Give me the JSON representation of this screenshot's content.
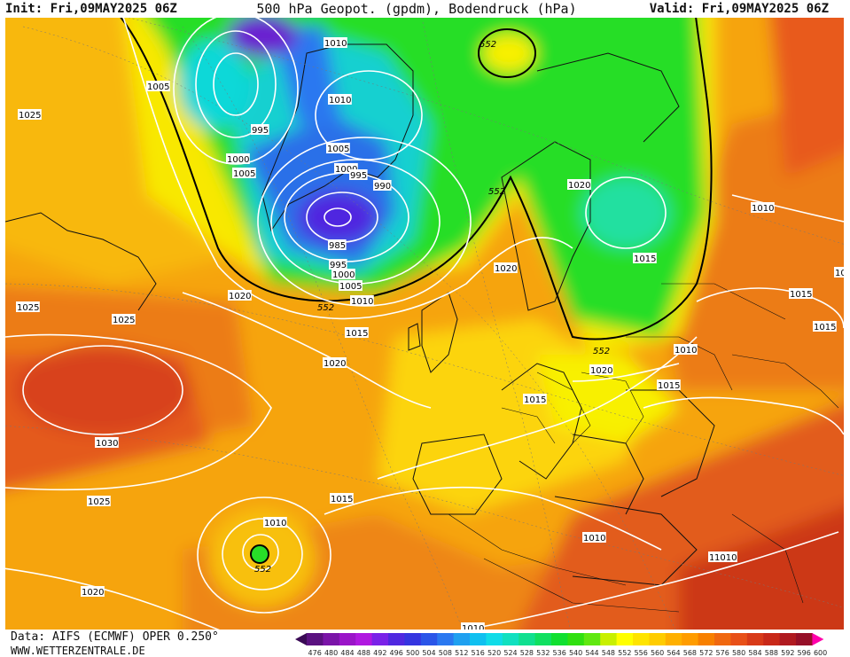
{
  "header": {
    "init": "Init: Fri,09MAY2025 06Z",
    "title": "500 hPa Geopot. (gpdm), Bodendruck (hPa)",
    "valid": "Valid: Fri,09MAY2025 06Z"
  },
  "footer": {
    "data_source": "Data: AIFS (ECMWF) OPER 0.250°",
    "website": "WWW.WETTERZENTRALE.DE"
  },
  "colorbar": {
    "ticks": [
      "476",
      "480",
      "484",
      "488",
      "492",
      "496",
      "500",
      "504",
      "508",
      "512",
      "516",
      "520",
      "524",
      "528",
      "532",
      "536",
      "540",
      "544",
      "548",
      "552",
      "556",
      "560",
      "564",
      "568",
      "572",
      "576",
      "580",
      "584",
      "588",
      "592",
      "596",
      "600"
    ],
    "colors": [
      "#3a0a55",
      "#5a1180",
      "#7a14a8",
      "#9a14c8",
      "#b018e0",
      "#7a22e8",
      "#5028e0",
      "#3535e0",
      "#2a55e8",
      "#2a78f0",
      "#1fa0f0",
      "#10c0f0",
      "#10dce8",
      "#10e0c0",
      "#10e090",
      "#10e060",
      "#10e030",
      "#30e010",
      "#60e810",
      "#c8f000",
      "#ffff00",
      "#ffe400",
      "#ffcc00",
      "#ffb000",
      "#ff9c00",
      "#f88000",
      "#f06810",
      "#e85018",
      "#d83a18",
      "#c82818",
      "#b01a20",
      "#961028",
      "#ff00aa"
    ]
  },
  "map": {
    "contour_labels": [
      {
        "text": "1010",
        "kind": "isobar"
      },
      {
        "text": "1005",
        "kind": "isobar"
      },
      {
        "text": "1025",
        "kind": "isobar"
      },
      {
        "text": "995",
        "kind": "isobar"
      },
      {
        "text": "1010",
        "kind": "isobar"
      },
      {
        "text": "1000",
        "kind": "isobar"
      },
      {
        "text": "1005",
        "kind": "isobar"
      },
      {
        "text": "1005",
        "kind": "isobar"
      },
      {
        "text": "1000",
        "kind": "isobar"
      },
      {
        "text": "995",
        "kind": "isobar"
      },
      {
        "text": "990",
        "kind": "isobar"
      },
      {
        "text": "985",
        "kind": "isobar"
      },
      {
        "text": "995",
        "kind": "isobar"
      },
      {
        "text": "1000",
        "kind": "isobar"
      },
      {
        "text": "1005",
        "kind": "isobar"
      },
      {
        "text": "1010",
        "kind": "isobar"
      },
      {
        "text": "1020",
        "kind": "isobar"
      },
      {
        "text": "1025",
        "kind": "isobar"
      },
      {
        "text": "1025",
        "kind": "isobar"
      },
      {
        "text": "1015",
        "kind": "isobar"
      },
      {
        "text": "1020",
        "kind": "isobar"
      },
      {
        "text": "1020",
        "kind": "isobar"
      },
      {
        "text": "1020",
        "kind": "isobar"
      },
      {
        "text": "1015",
        "kind": "isobar"
      },
      {
        "text": "1010",
        "kind": "isobar"
      },
      {
        "text": "1015",
        "kind": "isobar"
      },
      {
        "text": "1015",
        "kind": "isobar"
      },
      {
        "text": "1010",
        "kind": "isobar"
      },
      {
        "text": "1020",
        "kind": "isobar"
      },
      {
        "text": "1015",
        "kind": "isobar"
      },
      {
        "text": "1010",
        "kind": "isobar"
      },
      {
        "text": "1030",
        "kind": "isobar"
      },
      {
        "text": "1025",
        "kind": "isobar"
      },
      {
        "text": "1015",
        "kind": "isobar"
      },
      {
        "text": "1010",
        "kind": "isobar"
      },
      {
        "text": "1020",
        "kind": "isobar"
      },
      {
        "text": "1010",
        "kind": "isobar"
      },
      {
        "text": "1010",
        "kind": "isobar"
      },
      {
        "text": "1010",
        "kind": "isobar"
      },
      {
        "text": "10",
        "kind": "isobar"
      },
      {
        "text": "1015",
        "kind": "isobar"
      },
      {
        "text": "552",
        "kind": "geopotential"
      },
      {
        "text": "552",
        "kind": "geopotential"
      },
      {
        "text": "552",
        "kind": "geopotential"
      },
      {
        "text": "552",
        "kind": "geopotential"
      },
      {
        "text": "552",
        "kind": "geopotential"
      }
    ]
  }
}
